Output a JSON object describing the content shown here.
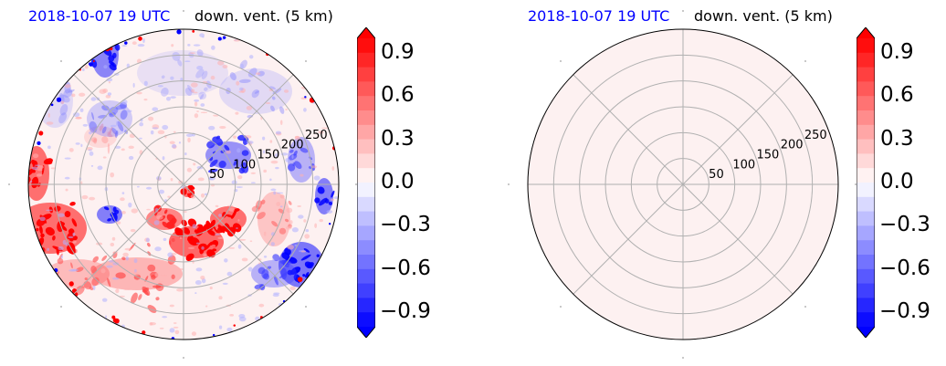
{
  "panels": [
    {
      "time_title": "2018-10-07 19 UTC",
      "var_title": "down. vent. (5 km)"
    },
    {
      "time_title": "2018-10-07 19 UTC",
      "var_title": "down. vent. (5 km)"
    }
  ],
  "colors": {
    "title_time": "#0000ff",
    "max": "#ff0000",
    "min": "#0000ff",
    "near_zero": "#fdf1f1"
  },
  "chart_data": [
    {
      "type": "heatmap",
      "projection": "polar",
      "title_left": "2018-10-07 19 UTC",
      "title_right": "down. vent. (5 km)",
      "radial_ticks": [
        "50",
        "100",
        "150",
        "200",
        "250"
      ],
      "radial_values": [
        50,
        100,
        150,
        200,
        250
      ],
      "angular_grid_deg": [
        0,
        45,
        90,
        135,
        180,
        225,
        270,
        315
      ],
      "colorbar": {
        "ticks": [
          "0.9",
          "0.6",
          "0.3",
          "0.0",
          "−0.3",
          "−0.6",
          "−0.9"
        ],
        "tick_values": [
          0.9,
          0.6,
          0.3,
          0.0,
          -0.3,
          -0.6,
          -0.9
        ],
        "range": [
          -1.0,
          1.0
        ],
        "extend": "both",
        "colormap": "bwr"
      },
      "field_description": "Mixed positive (red) and negative (blue) values; strong positive patches at lower-left and lower-center, negative patches at right and top-left"
    },
    {
      "type": "heatmap",
      "projection": "polar",
      "title_left": "2018-10-07 19 UTC",
      "title_right": "down. vent. (5 km)",
      "radial_ticks": [
        "50",
        "100",
        "150",
        "200",
        "250"
      ],
      "radial_values": [
        50,
        100,
        150,
        200,
        250
      ],
      "angular_grid_deg": [
        0,
        45,
        90,
        135,
        180,
        225,
        270,
        315
      ],
      "colorbar": {
        "ticks": [
          "0.9",
          "0.6",
          "0.3",
          "0.0",
          "−0.3",
          "−0.6",
          "−0.9"
        ],
        "tick_values": [
          0.9,
          0.6,
          0.3,
          0.0,
          -0.3,
          -0.6,
          -0.9
        ],
        "range": [
          -1.0,
          1.0
        ],
        "extend": "both",
        "colormap": "bwr"
      },
      "field_description": "Uniform near-zero field"
    }
  ]
}
